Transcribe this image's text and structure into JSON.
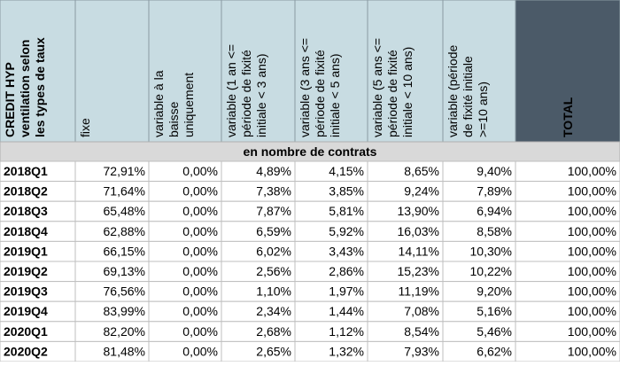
{
  "table": {
    "header": [
      [
        "CREDIT HYP",
        "ventilation selon",
        "les types de taux"
      ],
      [
        "fixe"
      ],
      [
        "variable à la",
        "baisse",
        "uniquement"
      ],
      [
        "variable (1 an <=",
        "période de fixité",
        "initiale < 3 ans)"
      ],
      [
        "variable (3 ans <=",
        "période de fixité",
        "initiale < 5 ans)"
      ],
      [
        "variable (5 ans  <=",
        "période de fixité",
        "initiale < 10 ans)"
      ],
      [
        "variable (période",
        "de fixité initiale",
        ">=10 ans)"
      ],
      [
        "TOTAL"
      ]
    ],
    "subheader": "en nombre de contrats",
    "rows": [
      [
        "2018Q1",
        "72,91%",
        "0,00%",
        "4,89%",
        "4,15%",
        "8,65%",
        "9,40%",
        "100,00%"
      ],
      [
        "2018Q2",
        "71,64%",
        "0,00%",
        "7,38%",
        "3,85%",
        "9,24%",
        "7,89%",
        "100,00%"
      ],
      [
        "2018Q3",
        "65,48%",
        "0,00%",
        "7,87%",
        "5,81%",
        "13,90%",
        "6,94%",
        "100,00%"
      ],
      [
        "2018Q4",
        "62,88%",
        "0,00%",
        "6,59%",
        "5,92%",
        "16,03%",
        "8,58%",
        "100,00%"
      ],
      [
        "2019Q1",
        "66,15%",
        "0,00%",
        "6,02%",
        "3,43%",
        "14,11%",
        "10,30%",
        "100,00%"
      ],
      [
        "2019Q2",
        "69,13%",
        "0,00%",
        "2,56%",
        "2,86%",
        "15,23%",
        "10,22%",
        "100,00%"
      ],
      [
        "2019Q3",
        "76,56%",
        "0,00%",
        "1,10%",
        "1,97%",
        "11,19%",
        "9,20%",
        "100,00%"
      ],
      [
        "2019Q4",
        "83,99%",
        "0,00%",
        "2,34%",
        "1,44%",
        "7,08%",
        "5,16%",
        "100,00%"
      ],
      [
        "2020Q1",
        "82,20%",
        "0,00%",
        "2,68%",
        "1,12%",
        "8,54%",
        "5,46%",
        "100,00%"
      ],
      [
        "2020Q2",
        "81,48%",
        "0,00%",
        "2,65%",
        "1,32%",
        "7,93%",
        "6,62%",
        "100,00%"
      ]
    ]
  }
}
